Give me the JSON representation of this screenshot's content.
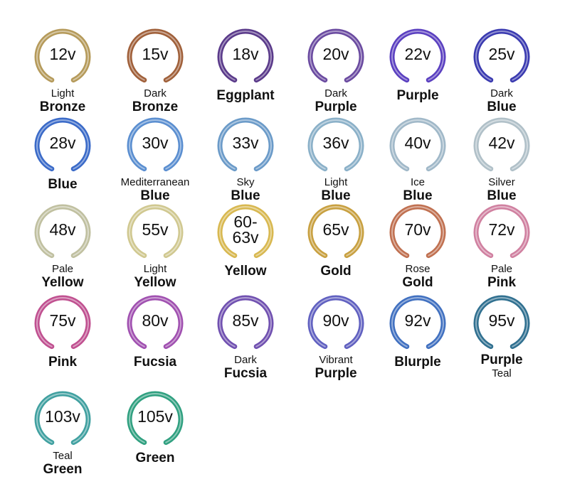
{
  "items": [
    {
      "voltage": [
        "12v"
      ],
      "color": "#b59a5a",
      "lines": [
        {
          "text": "Light",
          "bold": false
        },
        {
          "text": "Bronze",
          "bold": true
        }
      ]
    },
    {
      "voltage": [
        "15v"
      ],
      "color": "#a0603a",
      "lines": [
        {
          "text": "Dark",
          "bold": false
        },
        {
          "text": "Bronze",
          "bold": true
        }
      ]
    },
    {
      "voltage": [
        "18v"
      ],
      "color": "#5a3a8a",
      "lines": [
        {
          "text": "Eggplant",
          "bold": true
        }
      ]
    },
    {
      "voltage": [
        "20v"
      ],
      "color": "#6a4aa0",
      "lines": [
        {
          "text": "Dark",
          "bold": false
        },
        {
          "text": "Purple",
          "bold": true
        }
      ]
    },
    {
      "voltage": [
        "22v"
      ],
      "color": "#5a3fc0",
      "lines": [
        {
          "text": "Purple",
          "bold": true
        }
      ]
    },
    {
      "voltage": [
        "25v"
      ],
      "color": "#3a3ab0",
      "lines": [
        {
          "text": "Dark",
          "bold": false
        },
        {
          "text": "Blue",
          "bold": true
        }
      ]
    },
    {
      "voltage": [
        "28v"
      ],
      "color": "#3a6ac8",
      "lines": [
        {
          "text": "Blue",
          "bold": true
        }
      ]
    },
    {
      "voltage": [
        "30v"
      ],
      "color": "#5a8ed0",
      "lines": [
        {
          "text": "Mediterranean",
          "bold": false
        },
        {
          "text": "Blue",
          "bold": true
        }
      ]
    },
    {
      "voltage": [
        "33v"
      ],
      "color": "#6a9ac8",
      "lines": [
        {
          "text": "Sky",
          "bold": false
        },
        {
          "text": "Blue",
          "bold": true
        }
      ]
    },
    {
      "voltage": [
        "36v"
      ],
      "color": "#8ab0c8",
      "lines": [
        {
          "text": "Light",
          "bold": false
        },
        {
          "text": "Blue",
          "bold": true
        }
      ]
    },
    {
      "voltage": [
        "40v"
      ],
      "color": "#a0b8c8",
      "lines": [
        {
          "text": "Ice",
          "bold": false
        },
        {
          "text": "Blue",
          "bold": true
        }
      ]
    },
    {
      "voltage": [
        "42v"
      ],
      "color": "#b0c0c8",
      "lines": [
        {
          "text": "Silver",
          "bold": false
        },
        {
          "text": "Blue",
          "bold": true
        }
      ]
    },
    {
      "voltage": [
        "48v"
      ],
      "color": "#c0c0a0",
      "lines": [
        {
          "text": "Pale",
          "bold": false
        },
        {
          "text": "Yellow",
          "bold": true
        }
      ]
    },
    {
      "voltage": [
        "55v"
      ],
      "color": "#d0c890",
      "lines": [
        {
          "text": "Light",
          "bold": false
        },
        {
          "text": "Yellow",
          "bold": true
        }
      ]
    },
    {
      "voltage": [
        "60-",
        "63v"
      ],
      "color": "#d8b850",
      "lines": [
        {
          "text": "Yellow",
          "bold": true
        }
      ]
    },
    {
      "voltage": [
        "65v"
      ],
      "color": "#c8a040",
      "lines": [
        {
          "text": "Gold",
          "bold": true
        }
      ]
    },
    {
      "voltage": [
        "70v"
      ],
      "color": "#c07050",
      "lines": [
        {
          "text": "Rose",
          "bold": false
        },
        {
          "text": "Gold",
          "bold": true
        }
      ]
    },
    {
      "voltage": [
        "72v"
      ],
      "color": "#d080a0",
      "lines": [
        {
          "text": "Pale",
          "bold": false
        },
        {
          "text": "Pink",
          "bold": true
        }
      ]
    },
    {
      "voltage": [
        "75v"
      ],
      "color": "#c05090",
      "lines": [
        {
          "text": "Pink",
          "bold": true
        }
      ]
    },
    {
      "voltage": [
        "80v"
      ],
      "color": "#a050b0",
      "lines": [
        {
          "text": "Fucsia",
          "bold": true
        }
      ]
    },
    {
      "voltage": [
        "85v"
      ],
      "color": "#7050b0",
      "lines": [
        {
          "text": "Dark",
          "bold": false
        },
        {
          "text": "Fucsia",
          "bold": true
        }
      ]
    },
    {
      "voltage": [
        "90v"
      ],
      "color": "#6060c0",
      "lines": [
        {
          "text": "Vibrant",
          "bold": false
        },
        {
          "text": "Purple",
          "bold": true
        }
      ]
    },
    {
      "voltage": [
        "92v"
      ],
      "color": "#4070c0",
      "lines": [
        {
          "text": "Blurple",
          "bold": true
        }
      ]
    },
    {
      "voltage": [
        "95v"
      ],
      "color": "#307090",
      "lines": [
        {
          "text": "Purple",
          "bold": true
        },
        {
          "text": "Teal",
          "bold": false
        }
      ]
    },
    {
      "voltage": [
        "103v"
      ],
      "color": "#40a0a0",
      "lines": [
        {
          "text": "Teal",
          "bold": false
        },
        {
          "text": "Green",
          "bold": true
        }
      ]
    },
    {
      "voltage": [
        "105v"
      ],
      "color": "#30a080",
      "lines": [
        {
          "text": "Green",
          "bold": true
        }
      ]
    }
  ]
}
